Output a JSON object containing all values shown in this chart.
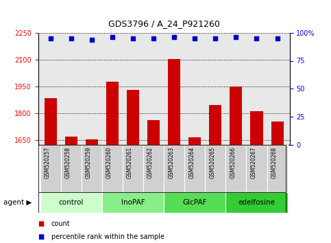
{
  "title": "GDS3796 / A_24_P921260",
  "samples": [
    "GSM520257",
    "GSM520258",
    "GSM520259",
    "GSM520260",
    "GSM520261",
    "GSM520262",
    "GSM520263",
    "GSM520264",
    "GSM520265",
    "GSM520266",
    "GSM520267",
    "GSM520268"
  ],
  "counts": [
    1885,
    1668,
    1655,
    1975,
    1930,
    1760,
    2103,
    1665,
    1845,
    1950,
    1810,
    1755
  ],
  "percentile_ranks": [
    95,
    95,
    94,
    96,
    95,
    95,
    96,
    95,
    95,
    96,
    95,
    95
  ],
  "groups": [
    {
      "label": "control",
      "start": 0,
      "end": 3,
      "color": "#ccffcc"
    },
    {
      "label": "InoPAF",
      "start": 3,
      "end": 6,
      "color": "#88ee88"
    },
    {
      "label": "GlcPAF",
      "start": 6,
      "end": 9,
      "color": "#55dd55"
    },
    {
      "label": "edelfosine",
      "start": 9,
      "end": 12,
      "color": "#33cc33"
    }
  ],
  "ylim_left": [
    1625,
    2250
  ],
  "ylim_right": [
    0,
    100
  ],
  "yticks_left": [
    1650,
    1800,
    1950,
    2100,
    2250
  ],
  "yticks_right": [
    0,
    25,
    50,
    75,
    100
  ],
  "bar_color": "#cc0000",
  "dot_color": "#0000cc",
  "bar_width": 0.6,
  "background_plot": "#e8e8e8",
  "legend_count_label": "count",
  "legend_pct_label": "percentile rank within the sample",
  "agent_label": "agent"
}
